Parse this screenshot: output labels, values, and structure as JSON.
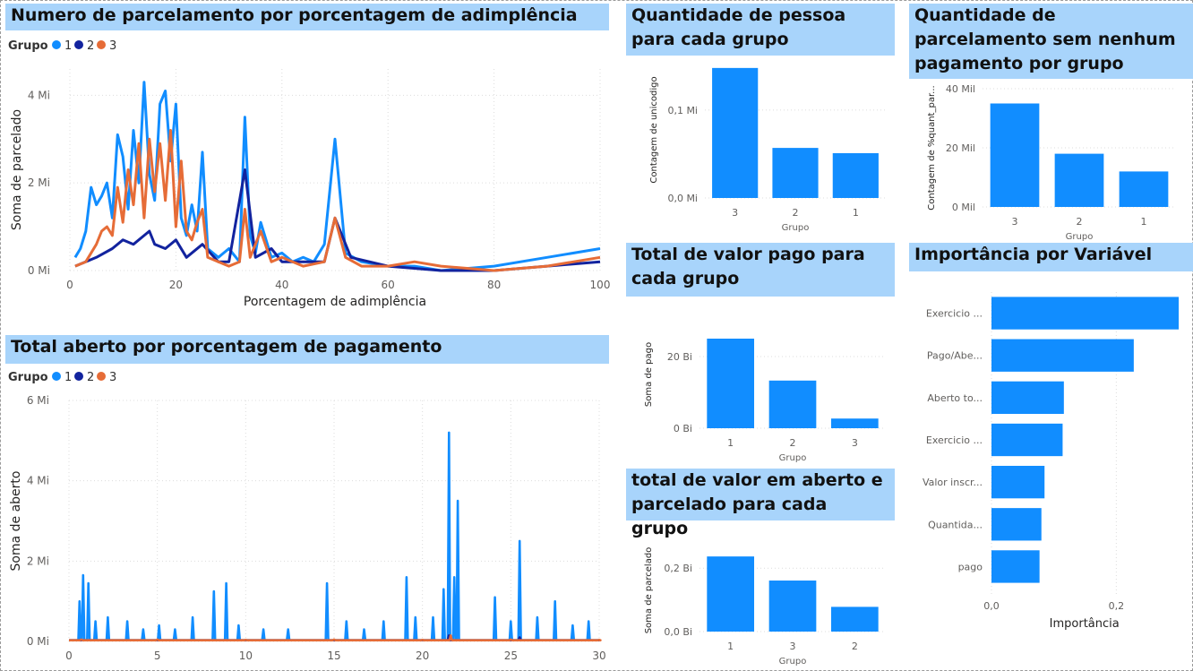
{
  "colors": {
    "g1": "#118dff",
    "g2": "#12239e",
    "g3": "#e66c37",
    "bar": "#118dff",
    "grid": "#dcdcdc",
    "axis_text": "#605e5c",
    "title_bg": "#a8d4fb"
  },
  "chart_data": [
    {
      "id": "adimplencia",
      "type": "line",
      "title": "Numero de parcelamento por porcentagem de adimplência",
      "legend": {
        "title": "Grupo",
        "entries": [
          "1",
          "2",
          "3"
        ],
        "placement": "top-left"
      },
      "xlabel": "Porcentagem de adimplência",
      "ylabel": "Soma de parcelado",
      "xlim": [
        0,
        100
      ],
      "ylim": [
        0,
        4.6
      ],
      "xticks": [
        0,
        20,
        40,
        60,
        80,
        100
      ],
      "xtick_labels": [
        "0",
        "20",
        "40",
        "60",
        "80",
        "100"
      ],
      "yticks": [
        0,
        2,
        4
      ],
      "ytick_labels": [
        "0 Mi",
        "2 Mi",
        "4 Mi"
      ],
      "series": [
        {
          "name": "1",
          "x": [
            1,
            2,
            3,
            4,
            5,
            6,
            7,
            8,
            9,
            10,
            11,
            12,
            13,
            14,
            15,
            16,
            17,
            18,
            19,
            20,
            21,
            22,
            23,
            24,
            25,
            26,
            27,
            28,
            29,
            30,
            32,
            33,
            34,
            35,
            36,
            38,
            40,
            42,
            44,
            46,
            48,
            50,
            52,
            55,
            60,
            65,
            70,
            80,
            90,
            100
          ],
          "y": [
            0.3,
            0.5,
            0.9,
            1.9,
            1.5,
            1.7,
            2.0,
            1.2,
            3.1,
            2.6,
            1.4,
            3.2,
            2.0,
            4.3,
            2.2,
            1.6,
            3.8,
            4.1,
            2.5,
            3.8,
            1.2,
            0.8,
            1.5,
            0.9,
            2.7,
            0.5,
            0.4,
            0.3,
            0.4,
            0.5,
            0.2,
            3.5,
            0.8,
            0.4,
            1.1,
            0.3,
            0.4,
            0.2,
            0.3,
            0.2,
            0.6,
            3.0,
            0.4,
            0.2,
            0.1,
            0.1,
            0.0,
            0.1,
            0.3,
            0.5
          ]
        },
        {
          "name": "2",
          "x": [
            1,
            5,
            8,
            10,
            12,
            14,
            15,
            16,
            18,
            20,
            22,
            25,
            28,
            30,
            33,
            35,
            38,
            40,
            45,
            48,
            50,
            53,
            60,
            70,
            80,
            90,
            100
          ],
          "y": [
            0.1,
            0.3,
            0.5,
            0.7,
            0.6,
            0.8,
            0.9,
            0.6,
            0.5,
            0.7,
            0.3,
            0.6,
            0.2,
            0.2,
            2.3,
            0.3,
            0.5,
            0.2,
            0.2,
            0.2,
            1.2,
            0.3,
            0.1,
            0.0,
            0.0,
            0.1,
            0.2
          ]
        },
        {
          "name": "3",
          "x": [
            1,
            3,
            5,
            6,
            7,
            8,
            9,
            10,
            11,
            12,
            13,
            14,
            15,
            16,
            17,
            18,
            19,
            20,
            21,
            22,
            23,
            24,
            25,
            26,
            28,
            30,
            32,
            33,
            34,
            36,
            38,
            40,
            44,
            48,
            50,
            52,
            55,
            60,
            65,
            70,
            80,
            90,
            100
          ],
          "y": [
            0.1,
            0.2,
            0.6,
            0.9,
            1.0,
            0.8,
            1.9,
            1.1,
            2.3,
            1.5,
            2.9,
            1.2,
            3.0,
            1.8,
            2.9,
            1.6,
            3.2,
            1.0,
            2.5,
            0.9,
            0.7,
            1.1,
            1.4,
            0.3,
            0.2,
            0.1,
            0.2,
            1.4,
            0.3,
            0.9,
            0.2,
            0.3,
            0.1,
            0.2,
            1.2,
            0.3,
            0.1,
            0.1,
            0.2,
            0.1,
            0.0,
            0.1,
            0.3
          ]
        }
      ]
    },
    {
      "id": "aberto",
      "type": "line",
      "title": "Total aberto por porcentagem de pagamento",
      "legend": {
        "title": "Grupo",
        "entries": [
          "1",
          "2",
          "3"
        ],
        "placement": "top-left"
      },
      "xlabel": "",
      "ylabel": "Soma de aberto",
      "xlim": [
        0,
        30
      ],
      "ylim": [
        0,
        6
      ],
      "xticks": [
        0,
        5,
        10,
        15,
        20,
        25,
        30
      ],
      "xtick_labels": [
        "0",
        "5",
        "10",
        "15",
        "20",
        "25",
        "30"
      ],
      "yticks": [
        0,
        2,
        4,
        6
      ],
      "ytick_labels": [
        "0 Mi",
        "2 Mi",
        "4 Mi",
        "6 Mi"
      ],
      "series": [
        {
          "name": "1",
          "peaks": [
            [
              0.8,
              1.65
            ],
            [
              0.6,
              1.0
            ],
            [
              1.1,
              1.45
            ],
            [
              1.5,
              0.5
            ],
            [
              2.2,
              0.6
            ],
            [
              3.3,
              0.5
            ],
            [
              4.2,
              0.3
            ],
            [
              5.1,
              0.4
            ],
            [
              6.0,
              0.3
            ],
            [
              7.0,
              0.6
            ],
            [
              8.2,
              1.25
            ],
            [
              8.9,
              1.45
            ],
            [
              9.6,
              0.4
            ],
            [
              11.0,
              0.3
            ],
            [
              12.4,
              0.3
            ],
            [
              14.6,
              1.45
            ],
            [
              15.7,
              0.5
            ],
            [
              16.7,
              0.3
            ],
            [
              17.8,
              0.5
            ],
            [
              19.1,
              1.6
            ],
            [
              19.6,
              0.6
            ],
            [
              20.6,
              0.6
            ],
            [
              21.2,
              1.3
            ],
            [
              21.5,
              5.2
            ],
            [
              21.8,
              1.6
            ],
            [
              22.0,
              3.5
            ],
            [
              24.1,
              1.1
            ],
            [
              25.0,
              0.5
            ],
            [
              25.5,
              2.5
            ],
            [
              26.5,
              0.6
            ],
            [
              27.5,
              1.0
            ],
            [
              28.5,
              0.4
            ],
            [
              29.4,
              0.5
            ]
          ]
        },
        {
          "name": "2",
          "peaks": [
            [
              21.5,
              0.15
            ],
            [
              25.5,
              0.1
            ]
          ]
        },
        {
          "name": "3",
          "peaks": [
            [
              0.7,
              0.05
            ],
            [
              5.0,
              0.05
            ],
            [
              10.0,
              0.04
            ],
            [
              15.0,
              0.05
            ],
            [
              20.0,
              0.04
            ],
            [
              21.6,
              0.15
            ],
            [
              25.0,
              0.05
            ],
            [
              30.0,
              0.04
            ]
          ]
        }
      ]
    },
    {
      "id": "pessoas",
      "type": "bar",
      "title": "Quantidade de pessoa para cada grupo",
      "xlabel": "Grupo",
      "ylabel": "Contagem de unicodigo",
      "categories": [
        "3",
        "2",
        "1"
      ],
      "values": [
        0.148,
        0.057,
        0.051
      ],
      "ylim": [
        0,
        0.155
      ],
      "yticks": [
        0,
        0.1
      ],
      "ytick_labels": [
        "0,0 Mi",
        "0,1 Mi"
      ]
    },
    {
      "id": "sem_pagamento",
      "type": "bar",
      "title": "Quantidade de parcelamento sem nenhum pagamento por grupo",
      "xlabel": "Grupo",
      "ylabel": "Contagem de %quant_par...",
      "categories": [
        "3",
        "2",
        "1"
      ],
      "values": [
        35,
        18,
        12
      ],
      "ylim": [
        0,
        40
      ],
      "yticks": [
        0,
        20,
        40
      ],
      "ytick_labels": [
        "0 Mil",
        "20 Mil",
        "40 Mil"
      ]
    },
    {
      "id": "valor_pago",
      "type": "bar",
      "title": "Total de valor pago para cada grupo",
      "xlabel": "Grupo",
      "ylabel": "Soma de pago",
      "categories": [
        "1",
        "2",
        "3"
      ],
      "values": [
        25,
        13.3,
        2.7
      ],
      "ylim": [
        0,
        30
      ],
      "yticks": [
        0,
        20
      ],
      "ytick_labels": [
        "0 Bi",
        "20 Bi"
      ]
    },
    {
      "id": "aberto_parcelado",
      "type": "bar",
      "title": "total de valor em aberto e parcelado para cada grupo",
      "xlabel": "Grupo",
      "ylabel": "Soma de parcelado",
      "categories": [
        "1",
        "3",
        "2"
      ],
      "values": [
        0.237,
        0.161,
        0.078
      ],
      "ylim": [
        0,
        0.26
      ],
      "yticks": [
        0,
        0.2
      ],
      "ytick_labels": [
        "0,0 Bi",
        "0,2 Bi"
      ]
    },
    {
      "id": "importancia",
      "type": "bar",
      "orientation": "horizontal",
      "title": "Importância por Variável",
      "xlabel": "Importância",
      "ylabel": "",
      "categories": [
        "Exercicio ...",
        "Pago/Abe...",
        "Aberto to...",
        "Exercicio ...",
        "Valor inscr...",
        "Quantida...",
        "pago"
      ],
      "values": [
        0.3,
        0.228,
        0.116,
        0.114,
        0.085,
        0.08,
        0.077
      ],
      "xlim": [
        0,
        0.31
      ],
      "xticks": [
        0,
        0.2
      ],
      "xtick_labels": [
        "0,0",
        "0,2"
      ]
    }
  ]
}
